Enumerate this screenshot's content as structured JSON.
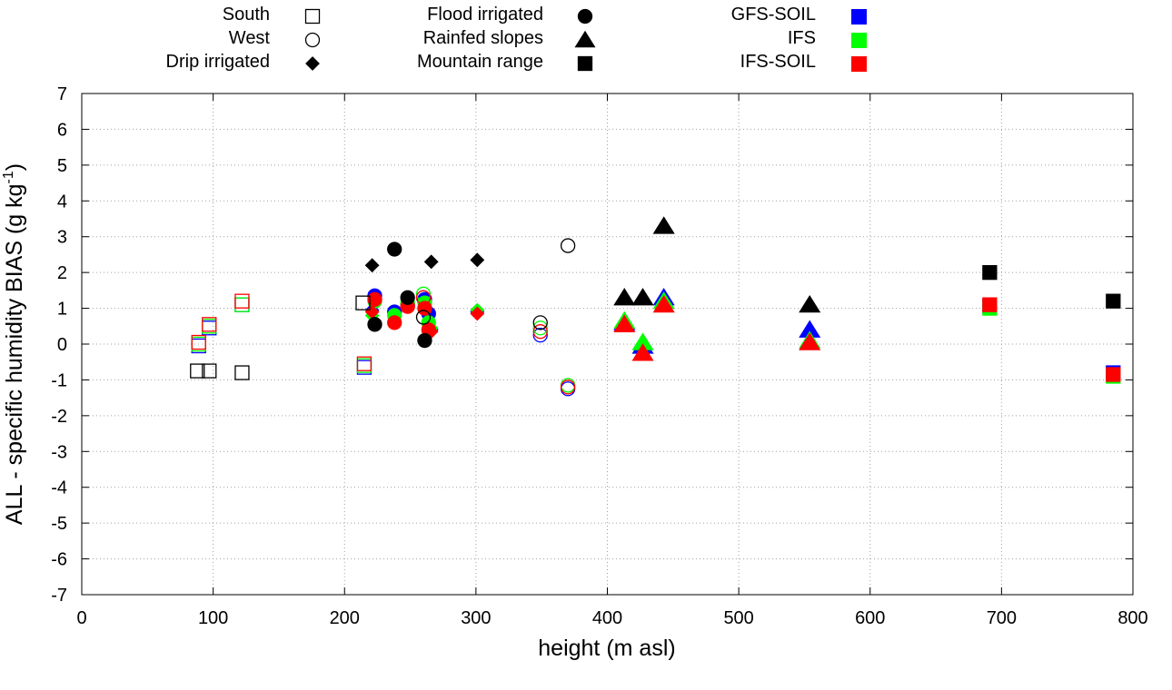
{
  "chart_data": {
    "type": "scatter",
    "xlabel": "height (m asl)",
    "ylabel": "ALL - specific humidity BIAS (g kg",
    "ylabel_sup": "-1",
    "ylabel_close": ")",
    "xlim": [
      0,
      800
    ],
    "ylim": [
      -7,
      7
    ],
    "xticks": [
      0,
      100,
      200,
      300,
      400,
      500,
      600,
      700,
      800
    ],
    "yticks": [
      -7,
      -6,
      -5,
      -4,
      -3,
      -2,
      -1,
      0,
      1,
      2,
      3,
      4,
      5,
      6,
      7
    ],
    "grid": true,
    "legend": {
      "regions": [
        {
          "label": "South",
          "marker": "square",
          "filled": false
        },
        {
          "label": "West",
          "marker": "circle",
          "filled": false
        },
        {
          "label": "Drip irrigated",
          "marker": "diamond",
          "filled": true
        },
        {
          "label": "Flood irrigated",
          "marker": "circle",
          "filled": true
        },
        {
          "label": "Rainfed slopes",
          "marker": "triangle",
          "filled": true
        },
        {
          "label": "Mountain range",
          "marker": "square",
          "filled": true
        }
      ],
      "models": [
        {
          "label": "GFS-SOIL",
          "color": "#0000ff"
        },
        {
          "label": "IFS",
          "color": "#00ff00"
        },
        {
          "label": "IFS-SOIL",
          "color": "#ff0000"
        }
      ]
    },
    "series": [
      {
        "region": "South",
        "model": "ALL",
        "points": [
          [
            88,
            -0.75
          ],
          [
            97,
            -0.75
          ],
          [
            122,
            -0.8
          ],
          [
            214,
            1.15
          ]
        ]
      },
      {
        "region": "South",
        "model": "GFS-SOIL",
        "points": [
          [
            89,
            -0.05
          ],
          [
            97,
            0.45
          ],
          [
            122,
            1.1
          ],
          [
            215,
            -0.65
          ]
        ]
      },
      {
        "region": "South",
        "model": "IFS",
        "points": [
          [
            89,
            0.0
          ],
          [
            97,
            0.5
          ],
          [
            122,
            1.1
          ],
          [
            215,
            -0.6
          ]
        ]
      },
      {
        "region": "South",
        "model": "IFS-SOIL",
        "points": [
          [
            89,
            0.05
          ],
          [
            97,
            0.55
          ],
          [
            122,
            1.2
          ],
          [
            215,
            -0.55
          ]
        ]
      },
      {
        "region": "West",
        "model": "ALL",
        "points": [
          [
            260,
            0.75
          ],
          [
            349,
            0.6
          ],
          [
            370,
            2.75
          ]
        ]
      },
      {
        "region": "West",
        "model": "GFS-SOIL",
        "points": [
          [
            260,
            1.3
          ],
          [
            349,
            0.25
          ],
          [
            370,
            -1.25
          ]
        ]
      },
      {
        "region": "West",
        "model": "IFS",
        "points": [
          [
            260,
            1.4
          ],
          [
            349,
            0.45
          ],
          [
            370,
            -1.15
          ]
        ]
      },
      {
        "region": "West",
        "model": "IFS-SOIL",
        "points": [
          [
            260,
            1.3
          ],
          [
            349,
            0.35
          ],
          [
            370,
            -1.2
          ]
        ]
      },
      {
        "region": "Drip irrigated",
        "model": "ALL",
        "points": [
          [
            221,
            2.2
          ],
          [
            266,
            2.3
          ],
          [
            301,
            2.35
          ]
        ]
      },
      {
        "region": "Drip irrigated",
        "model": "GFS-SOIL",
        "points": [
          [
            221,
            0.95
          ],
          [
            266,
            0.4
          ],
          [
            301,
            0.9
          ]
        ]
      },
      {
        "region": "Drip irrigated",
        "model": "IFS",
        "points": [
          [
            221,
            0.8
          ],
          [
            266,
            0.45
          ],
          [
            301,
            0.95
          ]
        ]
      },
      {
        "region": "Drip irrigated",
        "model": "IFS-SOIL",
        "points": [
          [
            221,
            0.9
          ],
          [
            266,
            0.35
          ],
          [
            301,
            0.85
          ]
        ]
      },
      {
        "region": "Flood irrigated",
        "model": "ALL",
        "points": [
          [
            223,
            0.55
          ],
          [
            238,
            2.65
          ],
          [
            248,
            1.3
          ],
          [
            261,
            0.1
          ]
        ]
      },
      {
        "region": "Flood irrigated",
        "model": "GFS-SOIL",
        "points": [
          [
            223,
            1.35
          ],
          [
            238,
            0.9
          ],
          [
            248,
            1.1
          ],
          [
            261,
            1.25
          ],
          [
            264,
            0.85
          ]
        ]
      },
      {
        "region": "Flood irrigated",
        "model": "IFS",
        "points": [
          [
            223,
            1.2
          ],
          [
            238,
            0.8
          ],
          [
            248,
            1.15
          ],
          [
            261,
            1.15
          ],
          [
            264,
            0.6
          ]
        ]
      },
      {
        "region": "Flood irrigated",
        "model": "IFS-SOIL",
        "points": [
          [
            223,
            1.25
          ],
          [
            238,
            0.6
          ],
          [
            248,
            1.05
          ],
          [
            261,
            1.0
          ],
          [
            264,
            0.4
          ]
        ]
      },
      {
        "region": "Rainfed slopes",
        "model": "ALL",
        "points": [
          [
            413,
            1.3
          ],
          [
            427,
            1.3
          ],
          [
            443,
            3.3
          ],
          [
            554,
            1.1
          ]
        ]
      },
      {
        "region": "Rainfed slopes",
        "model": "GFS-SOIL",
        "points": [
          [
            413,
            0.6
          ],
          [
            427,
            -0.05
          ],
          [
            443,
            1.3
          ],
          [
            554,
            0.4
          ]
        ]
      },
      {
        "region": "Rainfed slopes",
        "model": "IFS",
        "points": [
          [
            413,
            0.65
          ],
          [
            427,
            0.05
          ],
          [
            443,
            1.2
          ],
          [
            554,
            0.1
          ]
        ]
      },
      {
        "region": "Rainfed slopes",
        "model": "IFS-SOIL",
        "points": [
          [
            413,
            0.55
          ],
          [
            427,
            -0.25
          ],
          [
            443,
            1.1
          ],
          [
            554,
            0.05
          ]
        ]
      },
      {
        "region": "Mountain range",
        "model": "ALL",
        "points": [
          [
            691,
            2.0
          ],
          [
            785,
            1.2
          ]
        ]
      },
      {
        "region": "Mountain range",
        "model": "GFS-SOIL",
        "points": [
          [
            691,
            1.05
          ],
          [
            785,
            -0.8
          ]
        ]
      },
      {
        "region": "Mountain range",
        "model": "IFS",
        "points": [
          [
            691,
            1.0
          ],
          [
            785,
            -0.9
          ]
        ]
      },
      {
        "region": "Mountain range",
        "model": "IFS-SOIL",
        "points": [
          [
            691,
            1.1
          ],
          [
            785,
            -0.85
          ]
        ]
      }
    ]
  },
  "colors": {
    "ALL": "#000000",
    "GFS-SOIL": "#0000ff",
    "IFS": "#00ff00",
    "IFS-SOIL": "#ff0000"
  }
}
